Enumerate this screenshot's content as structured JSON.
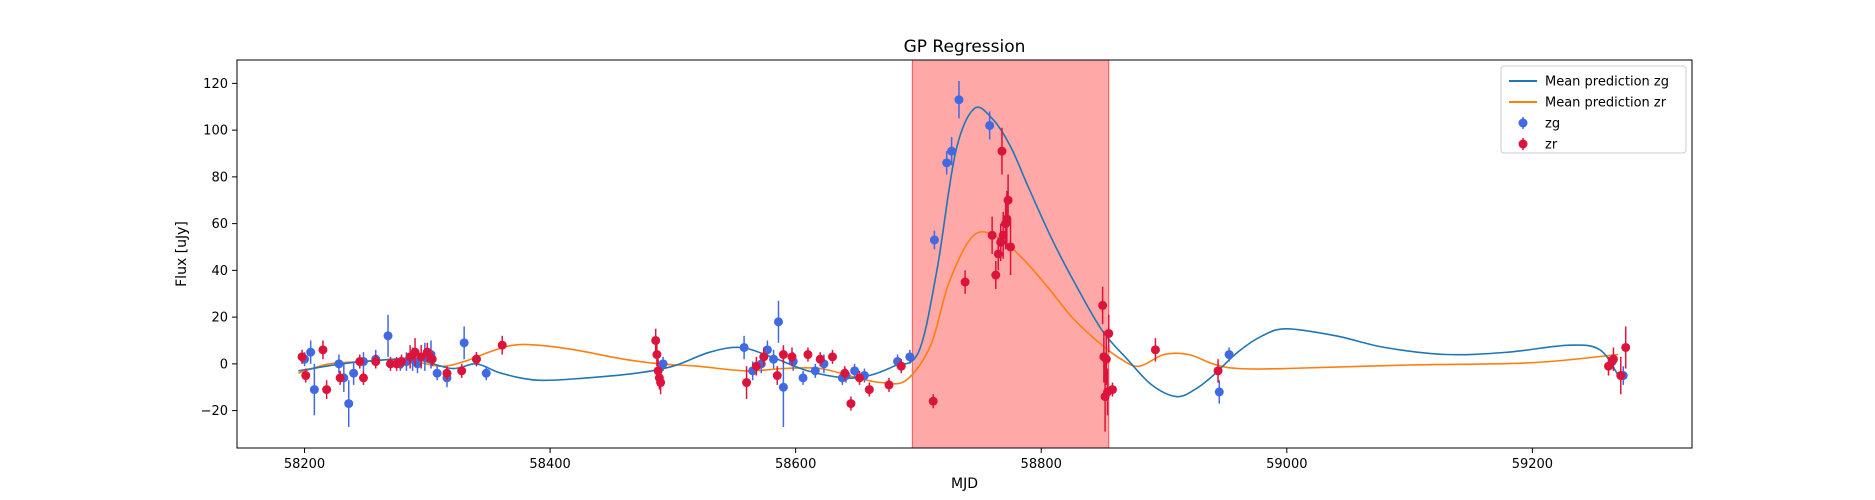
{
  "chart_data": {
    "type": "scatter",
    "title": "GP Regression",
    "xlabel": "MJD",
    "ylabel": "Flux [uJy]",
    "xlim": [
      58145,
      59330
    ],
    "ylim": [
      -36,
      130
    ],
    "xticks": [
      58200,
      58400,
      58600,
      58800,
      59000,
      59200
    ],
    "yticks": [
      -20,
      0,
      20,
      40,
      60,
      80,
      100,
      120
    ],
    "grid": false,
    "legend_position": "top-right",
    "shaded_region": {
      "x_start": 58695,
      "x_end": 58855,
      "color": "#ff0000"
    },
    "colors": {
      "zg_line": "#1f77b4",
      "zr_line": "#ff7f0e",
      "zg_points": "#4169e1",
      "zr_points": "#dc143c"
    },
    "series": [
      {
        "name": "Mean prediction zg",
        "kind": "line",
        "x": [
          58195,
          58230,
          58260,
          58290,
          58320,
          58340,
          58360,
          58390,
          58430,
          58470,
          58500,
          58530,
          58555,
          58580,
          58610,
          58640,
          58660,
          58680,
          58700,
          58715,
          58730,
          58745,
          58760,
          58775,
          58790,
          58810,
          58830,
          58850,
          58870,
          58890,
          58910,
          58925,
          58940,
          58960,
          58980,
          59000,
          59040,
          59080,
          59130,
          59180,
          59230,
          59255,
          59270
        ],
        "y": [
          -3,
          0,
          1.5,
          2,
          -2,
          0,
          -4,
          -7,
          -6,
          -4,
          -1,
          5,
          7,
          3,
          -3,
          -6,
          -5,
          -1,
          5,
          40,
          90,
          109,
          105,
          93,
          75,
          52,
          32,
          14,
          2,
          -9,
          -14,
          -11,
          -5,
          5,
          12,
          15,
          12,
          7,
          4,
          5,
          8,
          6,
          -5
        ]
      },
      {
        "name": "Mean prediction zr",
        "kind": "line",
        "x": [
          58195,
          58220,
          58250,
          58280,
          58310,
          58330,
          58350,
          58370,
          58390,
          58420,
          58460,
          58490,
          58520,
          58560,
          58590,
          58620,
          58650,
          58670,
          58690,
          58710,
          58725,
          58745,
          58765,
          58785,
          58805,
          58825,
          58845,
          58865,
          58880,
          58900,
          58920,
          58940,
          58960,
          59000,
          59100,
          59200,
          59270
        ],
        "y": [
          -4,
          0,
          1,
          2,
          -1,
          1,
          5,
          8,
          8,
          6,
          2,
          0,
          -1,
          -3,
          -2,
          -2,
          -6,
          -8,
          -7,
          8,
          35,
          55,
          54,
          45,
          33,
          20,
          10,
          2,
          -1,
          4,
          4,
          0,
          -2,
          -2,
          -0.5,
          0.5,
          4
        ]
      },
      {
        "name": "zg",
        "kind": "errorbar",
        "x": [
          58200,
          58205,
          58208,
          58228,
          58232,
          58236,
          58240,
          58248,
          58258,
          58268,
          58278,
          58283,
          58288,
          58292,
          58298,
          58303,
          58308,
          58316,
          58330,
          58340,
          58348,
          58492,
          58558,
          58565,
          58572,
          58577,
          58582,
          58586,
          58590,
          58598,
          58606,
          58616,
          58623,
          58638,
          58641,
          58648,
          58656,
          58683,
          58693,
          58713,
          58723,
          58727,
          58733,
          58758,
          58945,
          58953,
          59265,
          59274
        ],
        "y": [
          2,
          5,
          -11,
          0,
          -6,
          -17,
          -4,
          1,
          2,
          12,
          0,
          1,
          2,
          0,
          3,
          4,
          -4,
          -6,
          9,
          2,
          -4,
          0,
          7,
          -3,
          0,
          6,
          2,
          18,
          -10,
          1,
          -6,
          -3,
          0,
          -6,
          -5,
          -3,
          -5,
          1,
          3,
          53,
          86,
          91,
          113,
          102,
          -12,
          4,
          1,
          -5
        ],
        "err": [
          3,
          5,
          11,
          4,
          6,
          10,
          5,
          4,
          4,
          9,
          3,
          4,
          5,
          4,
          6,
          6,
          3,
          4,
          7,
          3,
          3,
          3,
          5,
          4,
          4,
          4,
          4,
          9,
          17,
          4,
          3,
          3,
          4,
          3,
          3,
          3,
          3,
          3,
          3,
          4,
          5,
          6,
          8,
          6,
          5,
          3,
          3,
          4
        ]
      },
      {
        "name": "zr",
        "kind": "errorbar",
        "x": [
          58198,
          58201,
          58215,
          58218,
          58229,
          58245,
          58248,
          58258,
          58270,
          58275,
          58279,
          58286,
          58290,
          58295,
          58300,
          58304,
          58316,
          58328,
          58340,
          58361,
          58486,
          58487,
          58488,
          58489,
          58490,
          58560,
          58568,
          58574,
          58585,
          58590,
          58597,
          58610,
          58620,
          58630,
          58640,
          58645,
          58652,
          58660,
          58676,
          58686,
          58712,
          58738,
          58760,
          58763,
          58765,
          58767,
          58768,
          58769,
          58771,
          58772,
          58773,
          58775,
          58850,
          58851,
          58852,
          58853,
          58854,
          58855,
          58858,
          58893,
          58944,
          59262,
          59266,
          59272,
          59276
        ],
        "y": [
          3,
          -5,
          6,
          -11,
          -6,
          1,
          -6,
          1,
          0,
          0,
          1,
          3,
          5,
          3,
          5,
          2,
          -4,
          -3,
          2,
          8,
          10,
          4,
          -3,
          -6,
          -8,
          -8,
          -1,
          3,
          -5,
          4,
          3,
          4,
          2,
          3,
          -4,
          -17,
          -6,
          -11,
          -9,
          -1,
          -16,
          35,
          55,
          38,
          47,
          52,
          91,
          55,
          60,
          62,
          70,
          50,
          25,
          3,
          -14,
          2,
          -12,
          13,
          -11,
          6,
          -3,
          -1,
          2,
          -5,
          7
        ],
        "err": [
          3,
          3,
          4,
          4,
          3,
          3,
          3,
          3,
          3,
          3,
          3,
          5,
          6,
          5,
          4,
          3,
          3,
          3,
          3,
          4,
          5,
          5,
          5,
          5,
          5,
          7,
          4,
          4,
          4,
          4,
          4,
          3,
          3,
          3,
          3,
          3,
          3,
          3,
          3,
          3,
          3,
          5,
          8,
          6,
          7,
          8,
          10,
          10,
          11,
          12,
          11,
          12,
          8,
          11,
          15,
          11,
          10,
          8,
          3,
          5,
          5,
          4,
          5,
          8,
          9
        ]
      }
    ],
    "legend": [
      "Mean prediction zg",
      "Mean prediction zr",
      "zg",
      "zr"
    ]
  }
}
